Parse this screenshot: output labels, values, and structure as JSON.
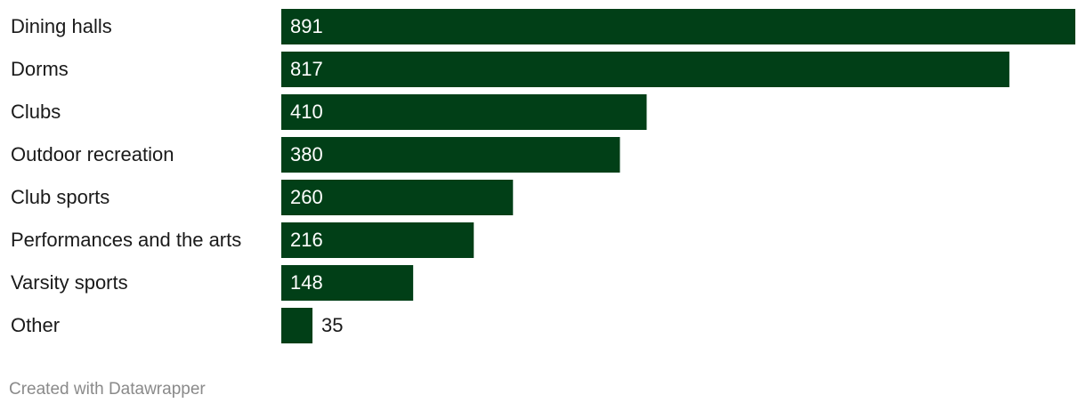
{
  "chart_data": {
    "type": "bar",
    "orientation": "horizontal",
    "categories": [
      "Dining halls",
      "Dorms",
      "Clubs",
      "Outdoor recreation",
      "Club sports",
      "Performances and the arts",
      "Varsity sports",
      "Other"
    ],
    "values": [
      891,
      817,
      410,
      380,
      260,
      216,
      148,
      35
    ],
    "color": "#013f17",
    "credit": "Created with Datawrapper"
  }
}
